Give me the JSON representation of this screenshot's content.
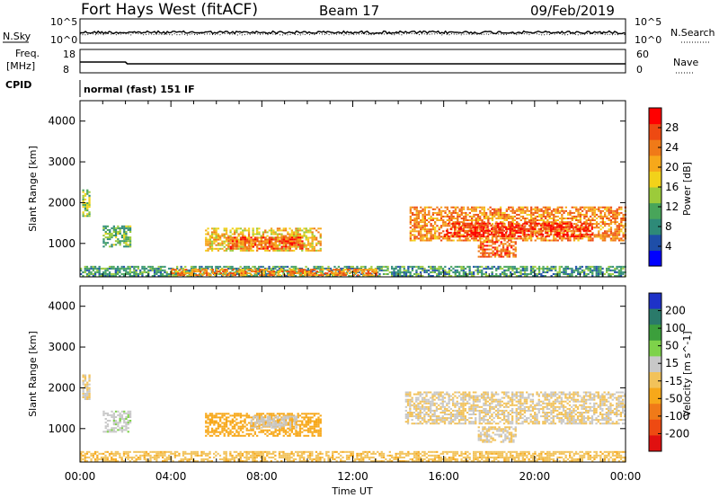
{
  "header": {
    "station": "Fort Hays West (fitACF)",
    "beam": "Beam 17",
    "date": "09/Feb/2019"
  },
  "strip_panels": {
    "nsky": {
      "label": "N.Sky",
      "left_ticks": [
        "10^5",
        "10^0"
      ]
    },
    "nsearch": {
      "label": "N.Search",
      "right_ticks": [
        "10^5",
        "10^0"
      ]
    },
    "freq": {
      "label_line1": "Freq.",
      "label_line2": "[MHz]",
      "left_ticks": [
        "18",
        "8"
      ]
    },
    "nave": {
      "label": "Nave",
      "right_ticks": [
        "60",
        "0"
      ]
    },
    "cpid": {
      "label": "CPID",
      "mode": "normal (fast) 151 IF"
    }
  },
  "chart_data": [
    {
      "type": "heatmap",
      "name_printed": "",
      "xlabel": "Time UT",
      "ylabel": "Slant Range [km]",
      "xlim": [
        "00:00",
        "24:00"
      ],
      "ylim": [
        180,
        4500
      ],
      "x_tick_labels": [
        "00:00",
        "04:00",
        "08:00",
        "12:00",
        "16:00",
        "20:00",
        "00:00"
      ],
      "y_tick_labels": [
        "1000",
        "2000",
        "3000",
        "4000"
      ],
      "colorbar": {
        "label": "Power [dB]",
        "range": [
          0,
          30
        ],
        "tick_labels": [
          "4",
          "8",
          "12",
          "16",
          "20",
          "24",
          "28"
        ],
        "colors": [
          "#0000ff",
          "#1e4ea8",
          "#2e8a78",
          "#48a55a",
          "#9ccb3a",
          "#f2d21a",
          "#f7a81a",
          "#f07a18",
          "#ee4a12",
          "#ff0000"
        ]
      },
      "echo_regions": [
        {
          "t_start": 0.1,
          "t_end": 0.4,
          "r_low": 1650,
          "r_high": 2300,
          "level": 13
        },
        {
          "t_start": 1.0,
          "t_end": 2.2,
          "r_low": 900,
          "r_high": 1400,
          "level": 11
        },
        {
          "t_start": 5.5,
          "t_end": 10.6,
          "r_low": 800,
          "r_high": 1350,
          "level": 18
        },
        {
          "t_start": 6.5,
          "t_end": 9.8,
          "r_low": 850,
          "r_high": 1150,
          "level": 24
        },
        {
          "t_start": 14.5,
          "t_end": 24.0,
          "r_low": 1050,
          "r_high": 1900,
          "level": 22
        },
        {
          "t_start": 16.0,
          "t_end": 22.5,
          "r_low": 1150,
          "r_high": 1500,
          "level": 28
        },
        {
          "t_start": 17.5,
          "t_end": 19.2,
          "r_low": 650,
          "r_high": 1050,
          "level": 24
        },
        {
          "t_start": 0.0,
          "t_end": 24.0,
          "r_low": 180,
          "r_high": 420,
          "level": 9
        },
        {
          "t_start": 4.0,
          "t_end": 13.0,
          "r_low": 200,
          "r_high": 380,
          "level": 22
        }
      ]
    },
    {
      "type": "heatmap",
      "name_printed": "",
      "xlabel": "Time UT",
      "ylabel": "Slant Range [km]",
      "xlim": [
        "00:00",
        "24:00"
      ],
      "ylim": [
        180,
        4500
      ],
      "x_tick_labels": [
        "00:00",
        "04:00",
        "08:00",
        "12:00",
        "16:00",
        "20:00",
        "00:00"
      ],
      "y_tick_labels": [
        "1000",
        "2000",
        "3000",
        "4000"
      ],
      "colorbar": {
        "label": "Velocity [m s^-1]",
        "range": [
          -250,
          250
        ],
        "tick_labels": [
          "200",
          "100",
          "50",
          "15",
          "-15",
          "-50",
          "-100",
          "-200"
        ],
        "colors": [
          "#1e32c8",
          "#2a7a6a",
          "#3c9f3c",
          "#7ed24a",
          "#c8c8c8",
          "#f2c25a",
          "#f7a81a",
          "#f07a18",
          "#ee4a12",
          "#e01010"
        ]
      },
      "echo_regions": [
        {
          "t_start": 0.1,
          "t_end": 0.4,
          "r_low": 1700,
          "r_high": 2300,
          "level": 0
        },
        {
          "t_start": 1.0,
          "t_end": 2.2,
          "r_low": 900,
          "r_high": 1400,
          "level": 40
        },
        {
          "t_start": 5.5,
          "t_end": 10.6,
          "r_low": 800,
          "r_high": 1350,
          "level": -70
        },
        {
          "t_start": 7.5,
          "t_end": 9.5,
          "r_low": 1000,
          "r_high": 1300,
          "level": 30
        },
        {
          "t_start": 14.3,
          "t_end": 24.0,
          "r_low": 1100,
          "r_high": 1900,
          "level": 0
        },
        {
          "t_start": 17.5,
          "t_end": 19.2,
          "r_low": 650,
          "r_high": 1050,
          "level": 0
        },
        {
          "t_start": 0.0,
          "t_end": 24.0,
          "r_low": 180,
          "r_high": 420,
          "level": -40
        }
      ]
    }
  ]
}
